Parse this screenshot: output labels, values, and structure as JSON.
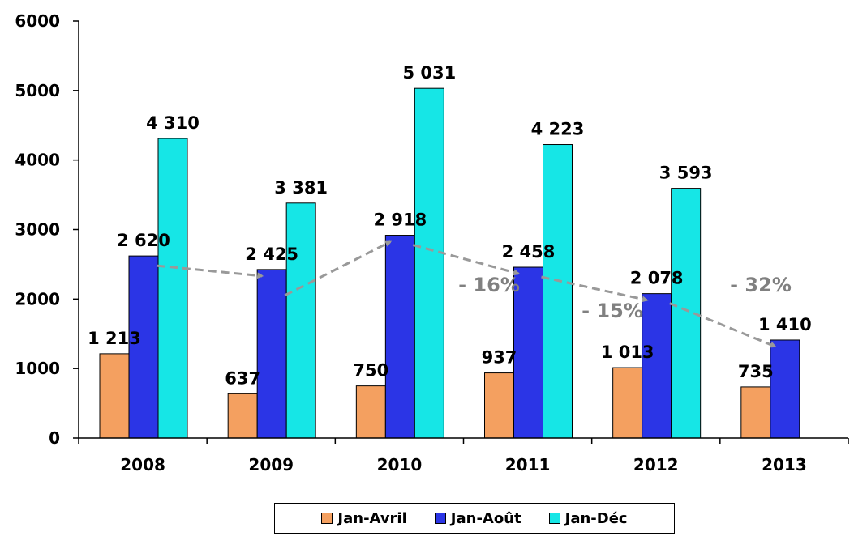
{
  "chart_data": {
    "type": "bar",
    "categories": [
      "2008",
      "2009",
      "2010",
      "2011",
      "2012",
      "2013"
    ],
    "series": [
      {
        "name": "Jan-Avril",
        "values": [
          1213,
          637,
          750,
          937,
          1013,
          735
        ],
        "labels": [
          "1 213",
          "637",
          "750",
          "937",
          "1 013",
          "735"
        ],
        "color": "#F4A060"
      },
      {
        "name": "Jan-Août",
        "values": [
          2620,
          2425,
          2918,
          2458,
          2078,
          1410
        ],
        "labels": [
          "2 620",
          "2 425",
          "2 918",
          "2 458",
          "2 078",
          "1 410"
        ],
        "color": "#2B35E6"
      },
      {
        "name": "Jan-Déc",
        "values": [
          4310,
          3381,
          5031,
          4223,
          3593,
          null
        ],
        "labels": [
          "4 310",
          "3 381",
          "5 031",
          "4 223",
          "3 593",
          ""
        ],
        "color": "#16E6E6"
      }
    ],
    "ylim": [
      0,
      6000
    ],
    "yticks": [
      "0",
      "1000",
      "2000",
      "3000",
      "4000",
      "5000",
      "6000"
    ],
    "annotations": [
      "- 16%",
      "- 15%",
      "- 32%"
    ],
    "trend_line": {
      "series": "Jan-Août",
      "style": "dashed",
      "color": "#999999"
    },
    "grid": false,
    "legend": "bottom",
    "title": "",
    "xlabel": "",
    "ylabel": ""
  }
}
